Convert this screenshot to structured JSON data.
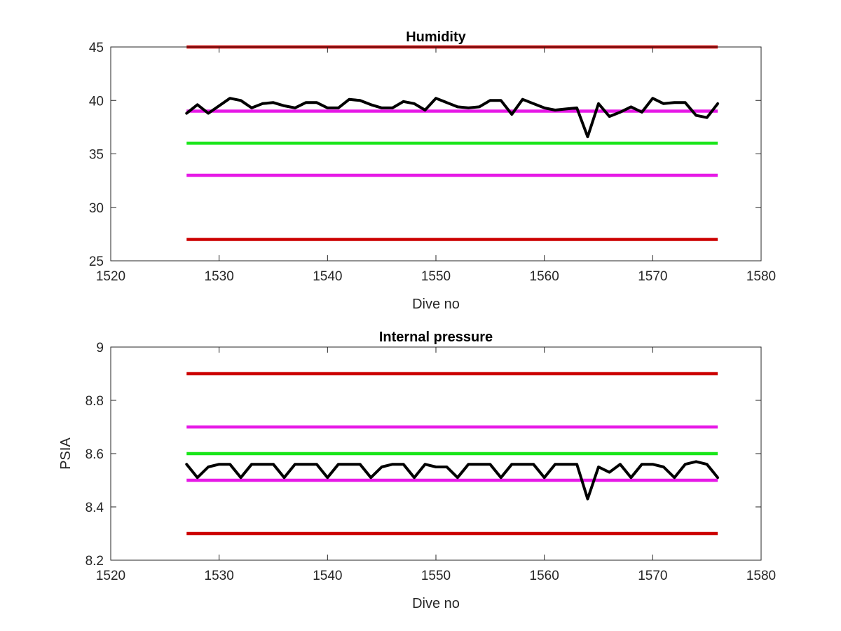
{
  "chart_data": [
    {
      "type": "line",
      "title": "Humidity",
      "xlabel": "Dive no",
      "ylabel": "",
      "xlim": [
        1520,
        1580
      ],
      "ylim": [
        25,
        45
      ],
      "xticks": [
        1520,
        1530,
        1540,
        1550,
        1560,
        1570,
        1580
      ],
      "yticks": [
        25,
        30,
        35,
        40,
        45
      ],
      "grid": false,
      "thresholds": [
        {
          "value": 45,
          "color": "#cc0000",
          "x_range": [
            1527,
            1576
          ]
        },
        {
          "value": 39,
          "color": "#e619e6",
          "x_range": [
            1527,
            1576
          ]
        },
        {
          "value": 36,
          "color": "#19e619",
          "x_range": [
            1527,
            1576
          ]
        },
        {
          "value": 33,
          "color": "#e619e6",
          "x_range": [
            1527,
            1576
          ]
        },
        {
          "value": 27,
          "color": "#cc0000",
          "x_range": [
            1527,
            1576
          ]
        }
      ],
      "series": [
        {
          "color": "#000000",
          "x": [
            1527,
            1528,
            1529,
            1530,
            1531,
            1532,
            1533,
            1534,
            1535,
            1536,
            1537,
            1538,
            1539,
            1540,
            1541,
            1542,
            1543,
            1544,
            1545,
            1546,
            1547,
            1548,
            1549,
            1550,
            1551,
            1552,
            1553,
            1554,
            1555,
            1556,
            1557,
            1558,
            1559,
            1560,
            1561,
            1562,
            1563,
            1564,
            1565,
            1566,
            1567,
            1568,
            1569,
            1570,
            1571,
            1572,
            1573,
            1574,
            1575,
            1576
          ],
          "values": [
            38.8,
            39.6,
            38.8,
            39.5,
            40.2,
            40.0,
            39.3,
            39.7,
            39.8,
            39.5,
            39.3,
            39.8,
            39.8,
            39.3,
            39.3,
            40.1,
            40.0,
            39.6,
            39.3,
            39.3,
            39.9,
            39.7,
            39.1,
            40.2,
            39.8,
            39.4,
            39.3,
            39.4,
            40.0,
            40.0,
            38.7,
            40.1,
            39.7,
            39.3,
            39.1,
            39.2,
            39.3,
            36.6,
            39.7,
            38.5,
            38.9,
            39.4,
            38.9,
            40.2,
            39.7,
            39.8,
            39.8,
            38.6,
            38.4,
            39.7
          ]
        }
      ]
    },
    {
      "type": "line",
      "title": "Internal pressure",
      "xlabel": "Dive no",
      "ylabel": "PSIA",
      "xlim": [
        1520,
        1580
      ],
      "ylim": [
        8.2,
        9
      ],
      "xticks": [
        1520,
        1530,
        1540,
        1550,
        1560,
        1570,
        1580
      ],
      "yticks": [
        8.2,
        8.4,
        8.6,
        8.8,
        9
      ],
      "grid": false,
      "thresholds": [
        {
          "value": 8.9,
          "color": "#cc0000",
          "x_range": [
            1527,
            1576
          ]
        },
        {
          "value": 8.7,
          "color": "#e619e6",
          "x_range": [
            1527,
            1576
          ]
        },
        {
          "value": 8.6,
          "color": "#19e619",
          "x_range": [
            1527,
            1576
          ]
        },
        {
          "value": 8.5,
          "color": "#e619e6",
          "x_range": [
            1527,
            1576
          ]
        },
        {
          "value": 8.3,
          "color": "#cc0000",
          "x_range": [
            1527,
            1576
          ]
        }
      ],
      "series": [
        {
          "color": "#000000",
          "x": [
            1527,
            1528,
            1529,
            1530,
            1531,
            1532,
            1533,
            1534,
            1535,
            1536,
            1537,
            1538,
            1539,
            1540,
            1541,
            1542,
            1543,
            1544,
            1545,
            1546,
            1547,
            1548,
            1549,
            1550,
            1551,
            1552,
            1553,
            1554,
            1555,
            1556,
            1557,
            1558,
            1559,
            1560,
            1561,
            1562,
            1563,
            1564,
            1565,
            1566,
            1567,
            1568,
            1569,
            1570,
            1571,
            1572,
            1573,
            1574,
            1575,
            1576
          ],
          "values": [
            8.56,
            8.51,
            8.55,
            8.56,
            8.56,
            8.51,
            8.56,
            8.56,
            8.56,
            8.51,
            8.56,
            8.56,
            8.56,
            8.51,
            8.56,
            8.56,
            8.56,
            8.51,
            8.55,
            8.56,
            8.56,
            8.51,
            8.56,
            8.55,
            8.55,
            8.51,
            8.56,
            8.56,
            8.56,
            8.51,
            8.56,
            8.56,
            8.56,
            8.51,
            8.56,
            8.56,
            8.56,
            8.43,
            8.55,
            8.53,
            8.56,
            8.51,
            8.56,
            8.56,
            8.55,
            8.51,
            8.56,
            8.57,
            8.56,
            8.51
          ]
        }
      ]
    }
  ]
}
